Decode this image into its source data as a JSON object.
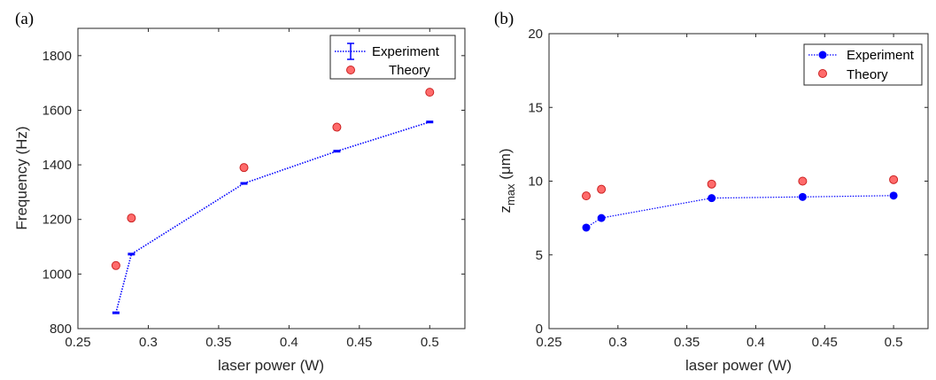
{
  "chart_data": [
    {
      "type": "line",
      "panel_label": "(a)",
      "xlabel": "laser power (W)",
      "ylabel": "Frequency (Hz)",
      "xlim": [
        0.25,
        0.525
      ],
      "ylim": [
        800,
        1900
      ],
      "xticks": [
        0.25,
        0.3,
        0.35,
        0.4,
        0.45,
        0.5
      ],
      "xtick_labels": [
        "0.25",
        "0.3",
        "0.35",
        "0.4",
        "0.45",
        "0.5"
      ],
      "yticks": [
        800,
        1000,
        1200,
        1400,
        1600,
        1800
      ],
      "ytick_labels": [
        "800",
        "1000",
        "1200",
        "1400",
        "1600",
        "1800"
      ],
      "grid": false,
      "legend_position": "top-right",
      "series": [
        {
          "name": "Experiment",
          "style": "dotted-line-errorbar",
          "color": "#0000ff",
          "x": [
            0.277,
            0.288,
            0.368,
            0.434,
            0.5
          ],
          "y": [
            858,
            1073,
            1332,
            1450,
            1557
          ],
          "error": [
            3,
            3,
            3,
            3,
            3
          ]
        },
        {
          "name": "Theory",
          "style": "marker",
          "color": "#ff6b6b",
          "x": [
            0.277,
            0.288,
            0.368,
            0.434,
            0.5
          ],
          "y": [
            1031,
            1205,
            1390,
            1538,
            1666
          ]
        }
      ]
    },
    {
      "type": "line",
      "panel_label": "(b)",
      "xlabel": "laser power (W)",
      "ylabel_main": "z",
      "ylabel_sub": "max",
      "ylabel_unit": " (μm)",
      "xlim": [
        0.25,
        0.525
      ],
      "ylim": [
        0,
        20
      ],
      "xticks": [
        0.25,
        0.3,
        0.35,
        0.4,
        0.45,
        0.5
      ],
      "xtick_labels": [
        "0.25",
        "0.3",
        "0.35",
        "0.4",
        "0.45",
        "0.5"
      ],
      "yticks": [
        0,
        5,
        10,
        15,
        20
      ],
      "ytick_labels": [
        "0",
        "5",
        "10",
        "15",
        "20"
      ],
      "grid": false,
      "legend_position": "top-right",
      "series": [
        {
          "name": "Experiment",
          "style": "dotted-line-marker",
          "color": "#0000ff",
          "x": [
            0.277,
            0.288,
            0.368,
            0.434,
            0.5
          ],
          "y": [
            6.85,
            7.5,
            8.85,
            8.93,
            9.02
          ]
        },
        {
          "name": "Theory",
          "style": "marker",
          "color": "#ff6b6b",
          "x": [
            0.277,
            0.288,
            0.368,
            0.434,
            0.5
          ],
          "y": [
            9.0,
            9.45,
            9.8,
            10.0,
            10.1
          ]
        }
      ]
    }
  ]
}
